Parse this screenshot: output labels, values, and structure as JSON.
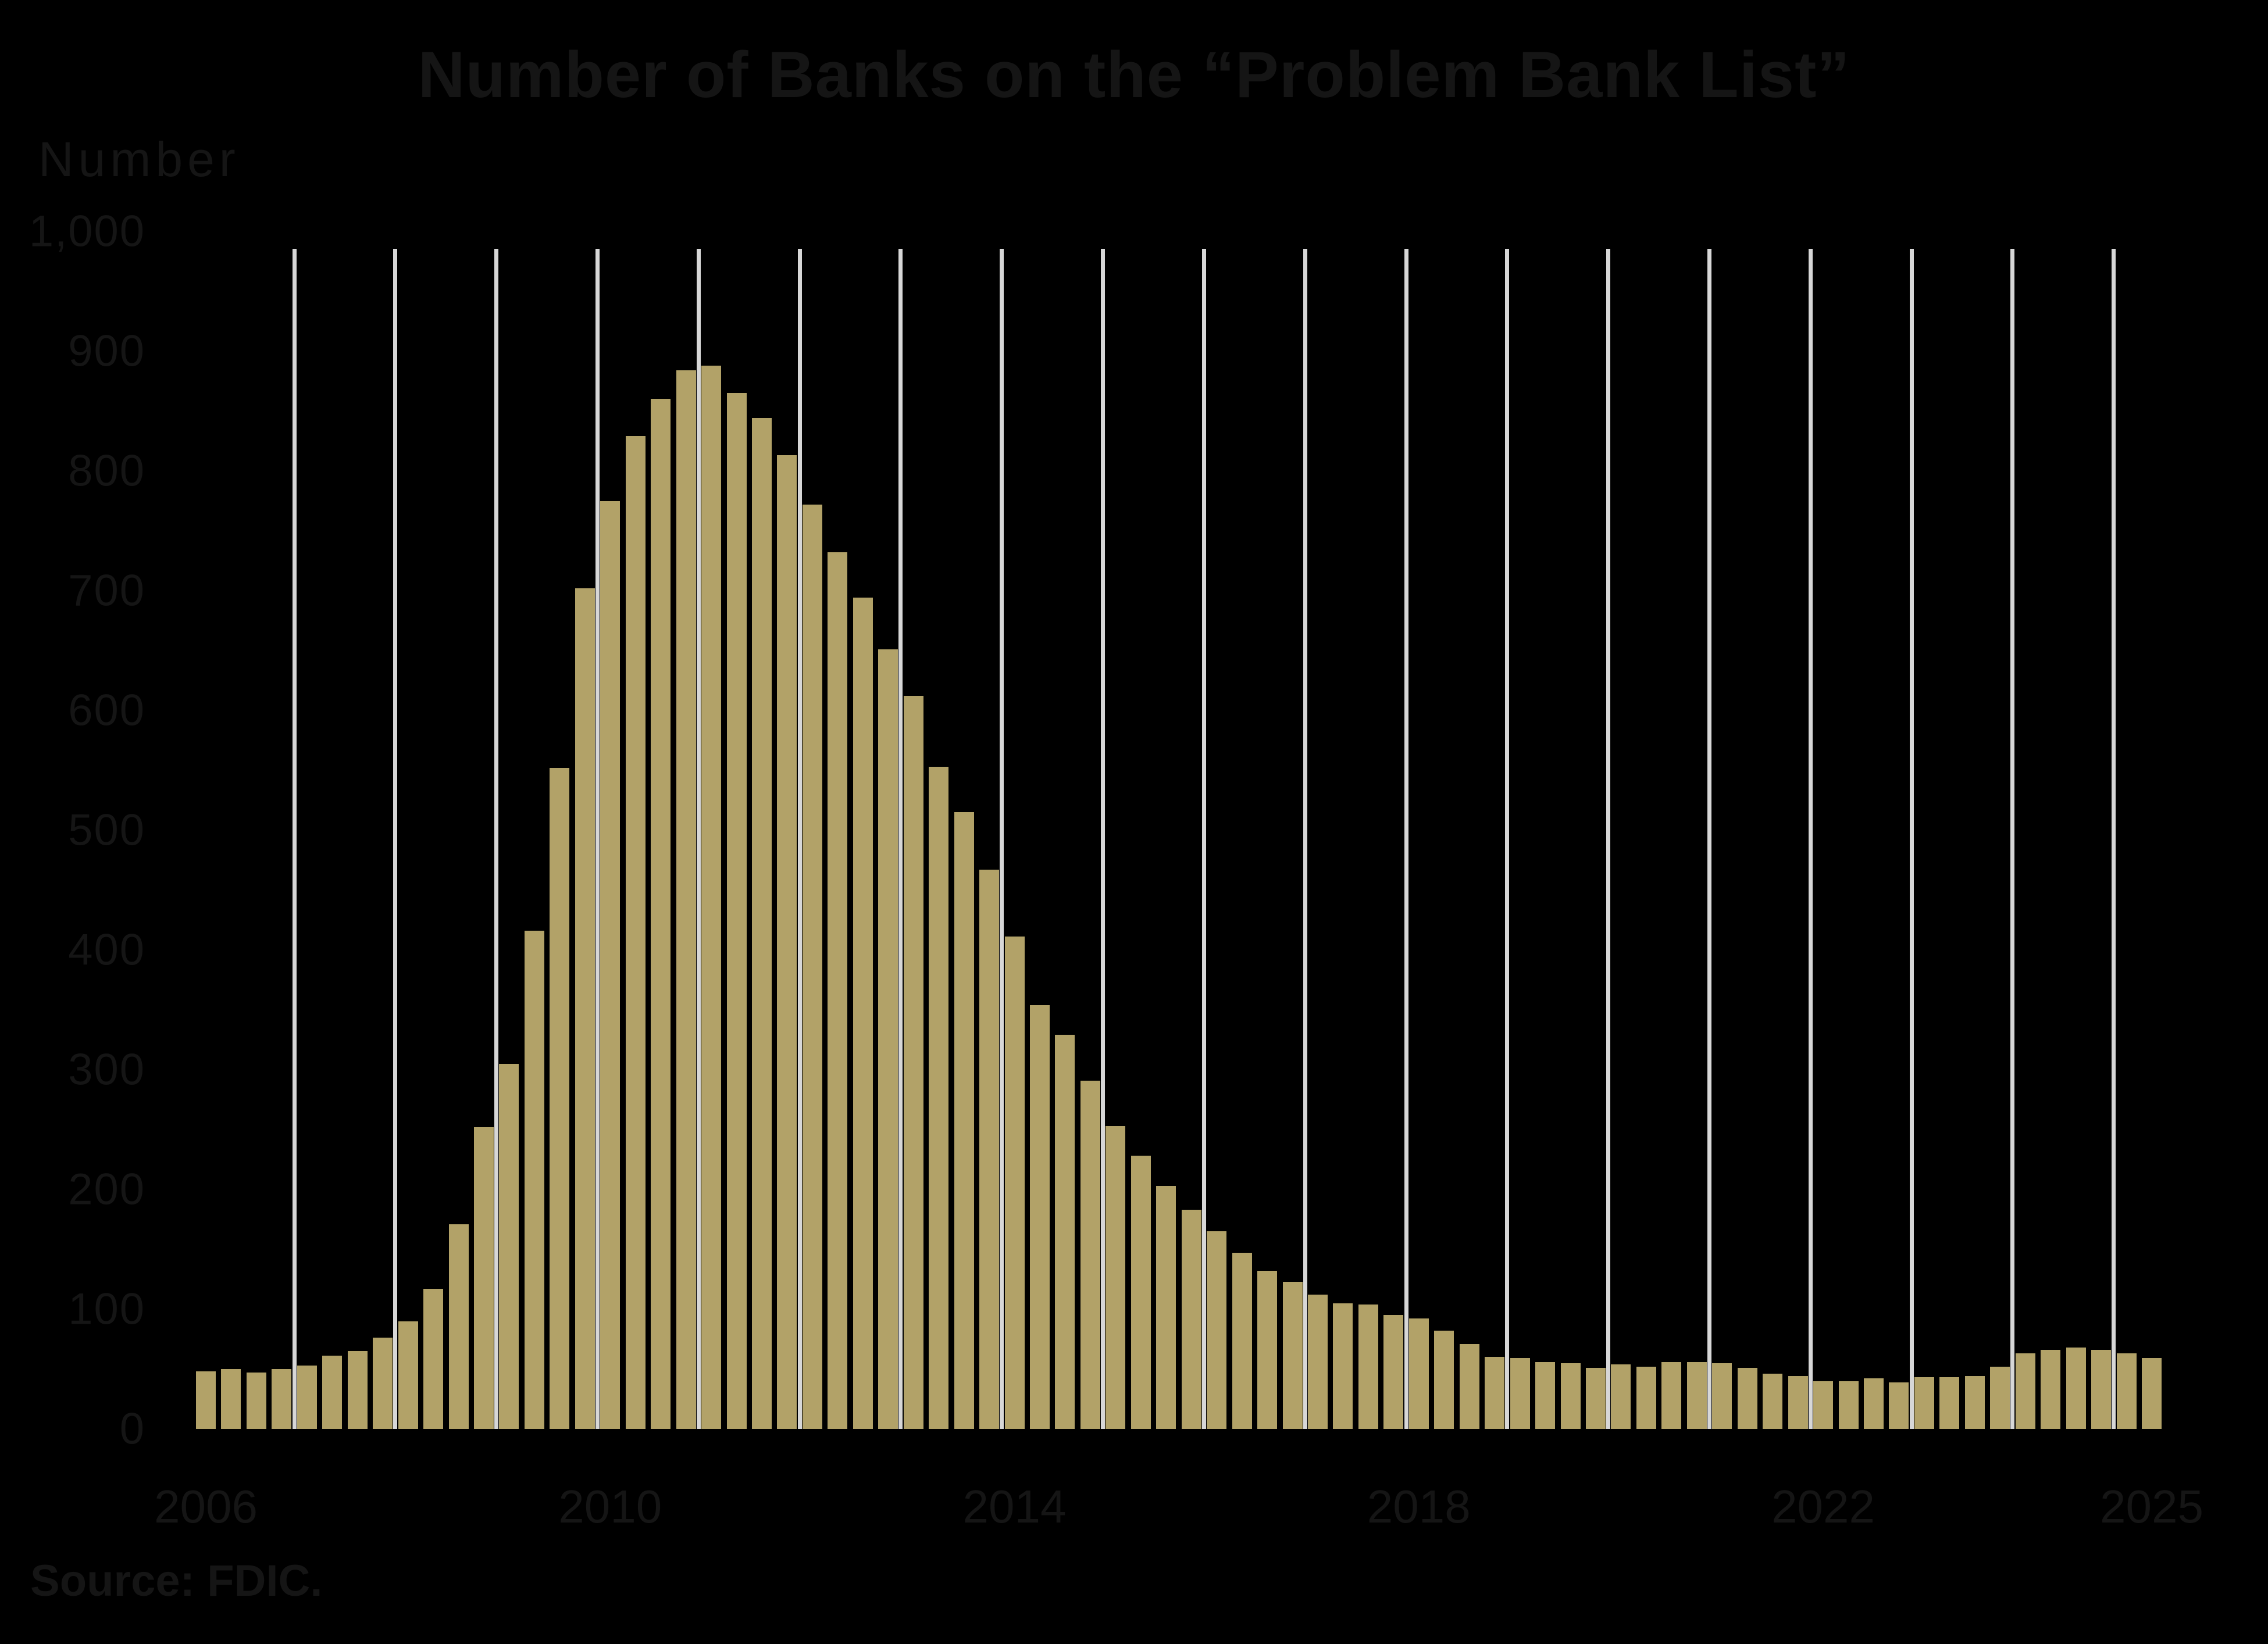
{
  "chart_data": {
    "type": "bar",
    "title": "Number of Banks on the “Problem Bank List”",
    "ylabel": "Number",
    "xlabel": "",
    "source_note": "Source: FDIC.",
    "legend": "none",
    "grid": "vertical gridlines at each year boundary",
    "ylim": [
      0,
      1000
    ],
    "frequency": "quarterly",
    "y_ticks": [
      {
        "label": "1,000",
        "value": 1000
      },
      {
        "label": "900",
        "value": 900
      },
      {
        "label": "800",
        "value": 800
      },
      {
        "label": "700",
        "value": 700
      },
      {
        "label": "600",
        "value": 600
      },
      {
        "label": "500",
        "value": 500
      },
      {
        "label": "400",
        "value": 400
      },
      {
        "label": "300",
        "value": 300
      },
      {
        "label": "200",
        "value": 200
      },
      {
        "label": "100",
        "value": 100
      },
      {
        "label": "0",
        "value": 0
      }
    ],
    "x_ticks": [
      {
        "label": "2006",
        "quarter_index": 0
      },
      {
        "label": "2010",
        "quarter_index": 16
      },
      {
        "label": "2014",
        "quarter_index": 32
      },
      {
        "label": "2018",
        "quarter_index": 48
      },
      {
        "label": "2022",
        "quarter_index": 64
      },
      {
        "label": "2025",
        "quarter_index": 77
      }
    ],
    "categories": [
      "2006 Q1",
      "2006 Q2",
      "2006 Q3",
      "2006 Q4",
      "2007 Q1",
      "2007 Q2",
      "2007 Q3",
      "2007 Q4",
      "2008 Q1",
      "2008 Q2",
      "2008 Q3",
      "2008 Q4",
      "2009 Q1",
      "2009 Q2",
      "2009 Q3",
      "2009 Q4",
      "2010 Q1",
      "2010 Q2",
      "2010 Q3",
      "2010 Q4",
      "2011 Q1",
      "2011 Q2",
      "2011 Q3",
      "2011 Q4",
      "2012 Q1",
      "2012 Q2",
      "2012 Q3",
      "2012 Q4",
      "2013 Q1",
      "2013 Q2",
      "2013 Q3",
      "2013 Q4",
      "2014 Q1",
      "2014 Q2",
      "2014 Q3",
      "2014 Q4",
      "2015 Q1",
      "2015 Q2",
      "2015 Q3",
      "2015 Q4",
      "2016 Q1",
      "2016 Q2",
      "2016 Q3",
      "2016 Q4",
      "2017 Q1",
      "2017 Q2",
      "2017 Q3",
      "2017 Q4",
      "2018 Q1",
      "2018 Q2",
      "2018 Q3",
      "2018 Q4",
      "2019 Q1",
      "2019 Q2",
      "2019 Q3",
      "2019 Q4",
      "2020 Q1",
      "2020 Q2",
      "2020 Q3",
      "2020 Q4",
      "2021 Q1",
      "2021 Q2",
      "2021 Q3",
      "2021 Q4",
      "2022 Q1",
      "2022 Q2",
      "2022 Q3",
      "2022 Q4",
      "2023 Q1",
      "2023 Q2",
      "2023 Q3",
      "2023 Q4",
      "2024 Q1",
      "2024 Q2",
      "2024 Q3",
      "2024 Q4",
      "2025 Q1",
      "2025 Q2"
    ],
    "values": [
      48,
      50,
      47,
      50,
      53,
      61,
      65,
      76,
      90,
      117,
      171,
      252,
      305,
      416,
      552,
      702,
      775,
      829,
      860,
      884,
      888,
      865,
      844,
      813,
      772,
      732,
      694,
      651,
      612,
      553,
      515,
      467,
      411,
      354,
      329,
      291,
      253,
      228,
      203,
      183,
      165,
      147,
      132,
      123,
      112,
      105,
      104,
      95,
      92,
      82,
      71,
      60,
      59,
      56,
      55,
      51,
      54,
      52,
      56,
      56,
      55,
      51,
      46,
      44,
      40,
      40,
      42,
      39,
      43,
      43,
      44,
      52,
      63,
      66,
      68,
      66,
      63,
      59
    ],
    "colors": {
      "bar": "#b2a268",
      "gridline": "#d7d7d7",
      "background": "#000000",
      "text": "#151515"
    }
  }
}
